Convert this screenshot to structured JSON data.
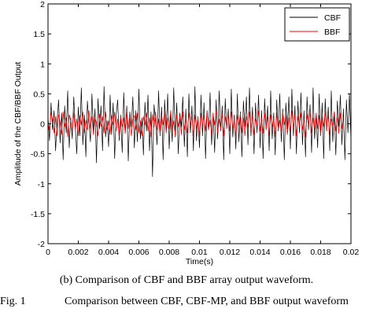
{
  "chart_data": {
    "type": "line",
    "xlabel": "Time(s)",
    "ylabel": "Amplitude of the CBF/BBF Output",
    "xlim": [
      0,
      0.02
    ],
    "ylim": [
      -2,
      2
    ],
    "x_ticks": [
      "0",
      "0.002",
      "0.004",
      "0.006",
      "0.008",
      "0.01",
      "0.012",
      "0.014",
      "0.016",
      "0.018",
      "0.02"
    ],
    "y_ticks": [
      "2",
      "1.5",
      "1",
      "0.5",
      "0",
      "-0.5",
      "-1",
      "-1.5",
      "-2"
    ],
    "grid": false,
    "legend_position": "top-right",
    "series": [
      {
        "name": "CBF",
        "color": "#000000",
        "x_start": 0,
        "x_step": 0.0001,
        "values": [
          0.12,
          -0.28,
          0.35,
          -0.1,
          0.22,
          -0.45,
          0.05,
          0.4,
          -0.32,
          0.18,
          -0.6,
          0.3,
          -0.15,
          0.55,
          -0.4,
          0.1,
          -0.25,
          0.45,
          -0.05,
          -0.5,
          0.28,
          -0.2,
          0.6,
          -0.35,
          0.15,
          -0.55,
          0.38,
          0.02,
          -0.3,
          0.5,
          -0.12,
          0.25,
          -0.65,
          0.42,
          -0.08,
          0.3,
          -0.45,
          0.62,
          -0.22,
          0.05,
          -0.38,
          0.48,
          -0.18,
          0.35,
          -0.58,
          0.15,
          0.4,
          -0.28,
          0.1,
          -0.48,
          0.52,
          -0.15,
          0.3,
          -0.62,
          0.2,
          -0.05,
          0.45,
          -0.4,
          0.22,
          -0.3,
          0.58,
          -0.25,
          0.1,
          -0.52,
          0.36,
          -0.12,
          0.48,
          -0.45,
          0.2,
          -0.88,
          0.32,
          0.05,
          -0.35,
          0.55,
          -0.2,
          0.28,
          -0.6,
          0.4,
          -0.1,
          0.5,
          -0.42,
          0.15,
          -0.3,
          0.6,
          -0.22,
          0.35,
          -0.5,
          0.18,
          -0.05,
          0.45,
          -0.38,
          0.25,
          -0.55,
          0.5,
          -0.15,
          0.3,
          -0.45,
          0.62,
          -0.28,
          0.12,
          -0.4,
          0.48,
          -0.2,
          0.35,
          -0.58,
          0.22,
          -0.1,
          0.52,
          -0.35,
          0.18,
          -0.48,
          0.4,
          -0.25,
          0.55,
          -0.12,
          0.3,
          -0.6,
          0.42,
          -0.08,
          0.25,
          -0.5,
          0.58,
          -0.22,
          0.15,
          -0.42,
          0.5,
          -0.3,
          0.2,
          -0.55,
          0.38,
          -0.05,
          0.45,
          -0.35,
          0.6,
          -0.2,
          0.28,
          -0.5,
          0.35,
          -0.15,
          0.48,
          -0.4,
          0.22,
          -0.58,
          0.42,
          -0.1,
          0.3,
          -0.45,
          0.55,
          -0.25,
          0.18,
          -0.52,
          0.4,
          -0.12,
          0.5,
          -0.3,
          0.25,
          -0.6,
          0.35,
          -0.08,
          0.45,
          -0.42,
          0.58,
          -0.2,
          0.3,
          -0.5,
          0.38,
          -0.15,
          0.52,
          -0.35,
          0.22,
          -0.55,
          0.45,
          -0.1,
          0.32,
          -0.48,
          0.6,
          -0.25,
          0.15,
          -0.4,
          0.5,
          -0.2,
          0.35,
          -0.58,
          0.42,
          -0.12,
          0.28,
          -0.45,
          0.55,
          -0.3,
          0.2,
          -0.52,
          0.38,
          -0.05,
          0.48,
          -0.35,
          0.25,
          -0.6,
          0.4,
          -0.15,
          0.5,
          -0.28
        ]
      },
      {
        "name": "BBF",
        "color": "#ff0000",
        "x_start": 0,
        "x_step": 0.0001,
        "values": [
          0.05,
          -0.1,
          0.18,
          0.08,
          -0.15,
          0.12,
          -0.2,
          0.15,
          0.02,
          -0.18,
          0.2,
          -0.05,
          0.1,
          -0.22,
          0.15,
          0.05,
          -0.12,
          0.18,
          -0.1,
          0.08,
          -0.2,
          0.14,
          -0.02,
          0.2,
          -0.15,
          0.06,
          -0.1,
          0.22,
          -0.08,
          0.12,
          -0.18,
          0.1,
          0.02,
          -0.2,
          0.16,
          -0.05,
          0.12,
          -0.15,
          0.2,
          -0.1,
          0.05,
          -0.18,
          0.14,
          -0.02,
          0.2,
          -0.12,
          0.08,
          -0.22,
          0.15,
          -0.05,
          0.1,
          -0.16,
          0.22,
          -0.08,
          0.12,
          -0.2,
          0.06,
          0.14,
          -0.1,
          0.18,
          -0.15,
          0.05,
          -0.2,
          0.12,
          -0.02,
          0.18,
          -0.12,
          0.1,
          -0.22,
          0.16,
          -0.05,
          0.2,
          -0.1,
          0.08,
          -0.18,
          0.14,
          -0.02,
          0.2,
          -0.15,
          0.1,
          -0.08,
          0.22,
          -0.12,
          0.05,
          -0.2,
          0.16,
          -0.05,
          0.12,
          -0.18,
          0.2,
          -0.1,
          0.08,
          -0.15,
          0.18,
          -0.02,
          0.12,
          -0.2,
          0.15,
          -0.08,
          0.1,
          -0.22,
          0.18,
          -0.05,
          0.14,
          -0.12,
          0.2,
          -0.1,
          0.06,
          -0.18,
          0.15,
          -0.02,
          0.22,
          -0.15,
          0.08,
          -0.1,
          0.18,
          -0.2,
          0.12,
          -0.05,
          0.16,
          -0.12,
          0.2,
          -0.08,
          0.1,
          -0.22,
          0.14,
          -0.02,
          0.18,
          -0.15,
          0.1,
          -0.2,
          0.12,
          -0.05,
          0.2,
          -0.1,
          0.15,
          -0.18,
          0.08,
          -0.02,
          0.22,
          -0.12,
          0.1,
          -0.16,
          0.18,
          -0.08,
          0.12,
          -0.2,
          0.15,
          -0.05,
          0.1,
          -0.22,
          0.18,
          -0.1,
          0.06,
          -0.15,
          0.2,
          -0.02,
          0.14,
          -0.18,
          0.1,
          -0.12,
          0.22,
          -0.08,
          0.15,
          -0.2,
          0.12,
          -0.05,
          0.18,
          -0.1,
          0.08,
          -0.22,
          0.16,
          -0.02,
          0.2,
          -0.15,
          0.1,
          -0.12,
          0.18,
          -0.08,
          0.14,
          -0.2,
          0.12,
          -0.05,
          0.22,
          -0.1,
          0.15,
          -0.18,
          0.08,
          -0.02,
          0.2,
          -0.12,
          0.1,
          -0.16,
          0.18,
          -0.08,
          0.12
        ]
      }
    ]
  },
  "captions": {
    "sub": "(b)   Comparison of CBF and BBF array output waveform.",
    "fig_number": "Fig. 1",
    "fig_text": "Comparison between CBF, CBF-MP, and BBF output waveform"
  }
}
